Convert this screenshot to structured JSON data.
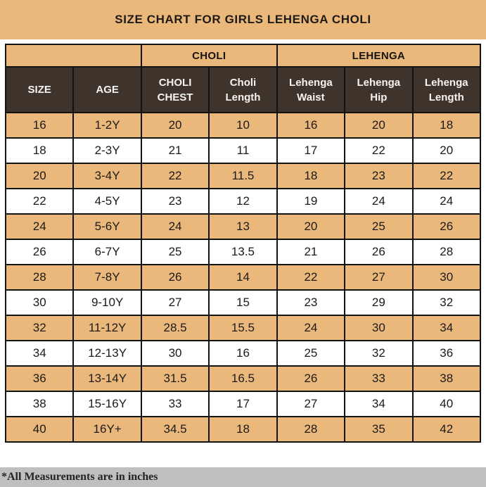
{
  "title": "SIZE CHART FOR GIRLS LEHENGA CHOLI",
  "table": {
    "group_headers": [
      {
        "label": "",
        "span": 2
      },
      {
        "label": "CHOLI",
        "span": 2
      },
      {
        "label": "LEHENGA",
        "span": 3
      }
    ],
    "column_headers": [
      "SIZE",
      "AGE",
      "CHOLI CHEST",
      "Choli Length",
      "Lehenga Waist",
      "Lehenga Hip",
      "Lehenga Length"
    ],
    "rows": [
      [
        "16",
        "1-2Y",
        "20",
        "10",
        "16",
        "20",
        "18"
      ],
      [
        "18",
        "2-3Y",
        "21",
        "11",
        "17",
        "22",
        "20"
      ],
      [
        "20",
        "3-4Y",
        "22",
        "11.5",
        "18",
        "23",
        "22"
      ],
      [
        "22",
        "4-5Y",
        "23",
        "12",
        "19",
        "24",
        "24"
      ],
      [
        "24",
        "5-6Y",
        "24",
        "13",
        "20",
        "25",
        "26"
      ],
      [
        "26",
        "6-7Y",
        "25",
        "13.5",
        "21",
        "26",
        "28"
      ],
      [
        "28",
        "7-8Y",
        "26",
        "14",
        "22",
        "27",
        "30"
      ],
      [
        "30",
        "9-10Y",
        "27",
        "15",
        "23",
        "29",
        "32"
      ],
      [
        "32",
        "11-12Y",
        "28.5",
        "15.5",
        "24",
        "30",
        "34"
      ],
      [
        "34",
        "12-13Y",
        "30",
        "16",
        "25",
        "32",
        "36"
      ],
      [
        "36",
        "13-14Y",
        "31.5",
        "16.5",
        "26",
        "33",
        "38"
      ],
      [
        "38",
        "15-16Y",
        "33",
        "17",
        "27",
        "34",
        "40"
      ],
      [
        "40",
        "16Y+",
        "34.5",
        "18",
        "28",
        "35",
        "42"
      ]
    ]
  },
  "footer_note": "*All Measurements are in inches",
  "colors": {
    "tan": "#ebb87c",
    "dark_brown": "#3e342c",
    "footer_gray": "#bfbfbf",
    "row_white": "#ffffff",
    "border": "#121212",
    "header_text": "#f6f4f2",
    "body_text": "#1c1a18"
  }
}
